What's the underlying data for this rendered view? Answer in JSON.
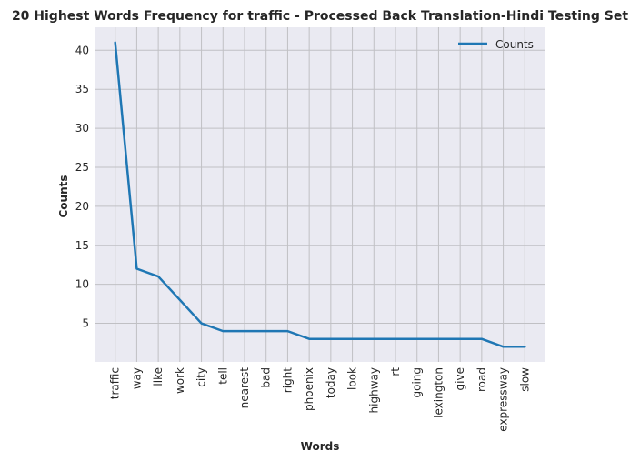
{
  "chart_data": {
    "type": "line",
    "title": "20 Highest Words Frequency for traffic - Processed Back Translation-Hindi Testing Set",
    "xlabel": "Words",
    "ylabel": "Counts",
    "categories": [
      "traffic",
      "way",
      "like",
      "work",
      "city",
      "tell",
      "nearest",
      "bad",
      "right",
      "phoenix",
      "today",
      "look",
      "highway",
      "rt",
      "going",
      "lexington",
      "give",
      "road",
      "expressway",
      "slow"
    ],
    "series": [
      {
        "name": "Counts",
        "values": [
          41,
          12,
          11,
          8,
          5,
          4,
          4,
          4,
          4,
          3,
          3,
          3,
          3,
          3,
          3,
          3,
          3,
          3,
          2,
          2
        ],
        "color": "#1f77b4"
      }
    ],
    "yticks": [
      5,
      10,
      15,
      20,
      25,
      30,
      35,
      40
    ],
    "ylim": [
      0.05,
      42.95
    ],
    "grid": true,
    "legend_position": "top-right",
    "background_color": "#eaeaf2",
    "grid_color": "#c0c0c4"
  }
}
